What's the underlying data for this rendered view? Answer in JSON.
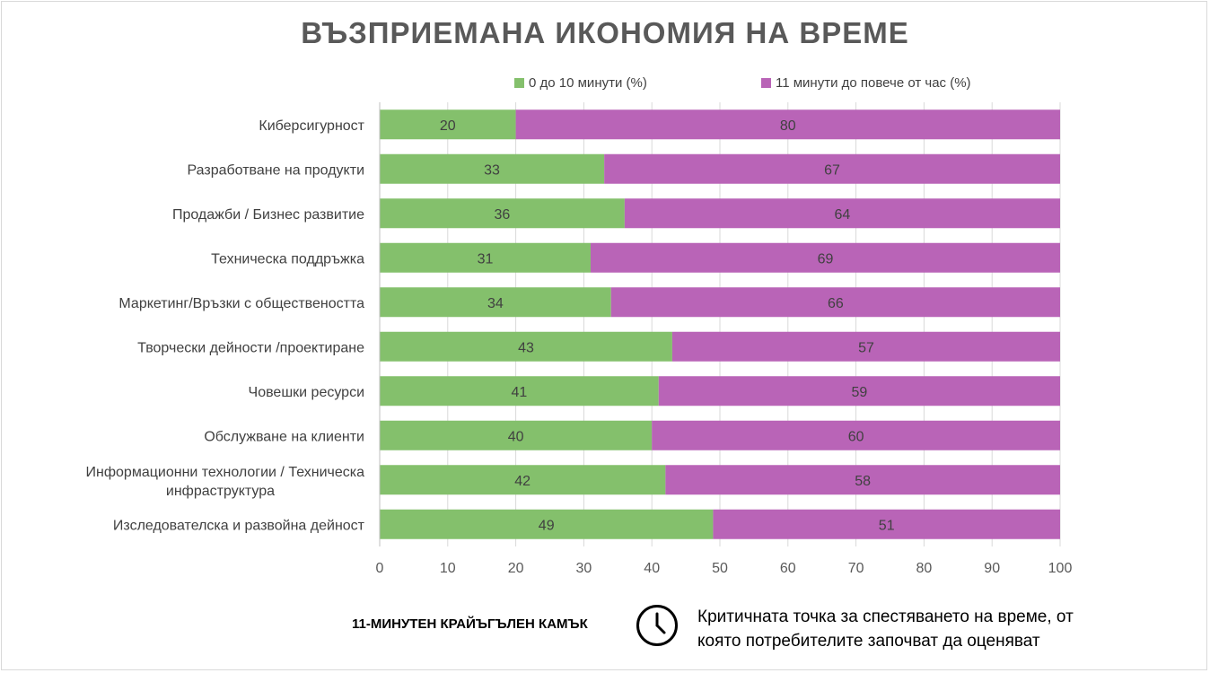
{
  "title": "ВЪЗПРИЕМАНА ИКОНОМИЯ НА ВРЕМЕ",
  "legend": [
    {
      "label": "0 до 10 минути (%)",
      "color": "#84c06c"
    },
    {
      "label": "11 минути до повече от час (%)",
      "color": "#b964b7"
    }
  ],
  "chart_data": {
    "type": "bar",
    "orientation": "horizontal",
    "stacked": true,
    "categories": [
      "Киберсигурност",
      "Разработване на продукти",
      "Продажби / Бизнес развитие",
      "Техническа поддръжка",
      "Маркетинг/Връзки с обществеността",
      "Творчески дейности /проектиране",
      "Човешки ресурси",
      "Обслужване на клиенти",
      "Информационни технологии / Техническа инфраструктура",
      "Изследователска и развойна дейност"
    ],
    "series": [
      {
        "name": "0 до 10 минути (%)",
        "color": "#84c06c",
        "values": [
          20,
          33,
          36,
          31,
          34,
          43,
          41,
          40,
          42,
          49
        ]
      },
      {
        "name": "11 минути до повече от час (%)",
        "color": "#b964b7",
        "values": [
          80,
          67,
          64,
          69,
          66,
          57,
          59,
          60,
          58,
          51
        ]
      }
    ],
    "xlim": [
      0,
      100
    ],
    "xticks": [
      0,
      10,
      20,
      30,
      40,
      50,
      60,
      70,
      80,
      90,
      100
    ],
    "grid": true,
    "legend_position": "top"
  },
  "footer": {
    "left_label": "11-МИНУТЕН КРАЙЪГЪЛЕН КАМЪК",
    "icon": "clock-icon",
    "right_text": "Критичната точка за спестяването на време, от която потребителите започват да оценяват"
  }
}
